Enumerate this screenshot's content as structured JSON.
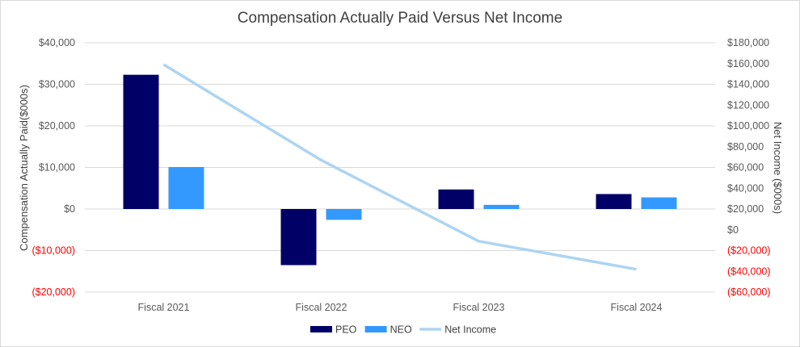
{
  "chart_data": {
    "type": "bar",
    "title": "Compensation Actually Paid Versus Net Income",
    "categories": [
      "Fiscal 2021",
      "Fiscal 2022",
      "Fiscal 2023",
      "Fiscal 2024"
    ],
    "series": [
      {
        "name": "PEO",
        "type": "bar",
        "axis": "left",
        "color": "#000066",
        "values": [
          32300,
          -13500,
          4700,
          3600
        ]
      },
      {
        "name": "NEO",
        "type": "bar",
        "axis": "left",
        "color": "#3399ff",
        "values": [
          10100,
          -2600,
          1000,
          2800
        ]
      },
      {
        "name": "Net Income",
        "type": "line",
        "axis": "right",
        "color": "#add4f2",
        "values": [
          159000,
          67000,
          -11000,
          -38000
        ]
      }
    ],
    "ylabel": "Compensation Actually Paid($000s)",
    "y2label": "Net Income ($000s)",
    "ylim": [
      -20000,
      40000
    ],
    "y2lim": [
      -60000,
      180000
    ],
    "yticks": [
      {
        "value": 40000,
        "label": "$40,000"
      },
      {
        "value": 30000,
        "label": "$30,000"
      },
      {
        "value": 20000,
        "label": "$20,000"
      },
      {
        "value": 10000,
        "label": "$10,000"
      },
      {
        "value": 0,
        "label": "$0"
      },
      {
        "value": -10000,
        "label": "($10,000)"
      },
      {
        "value": -20000,
        "label": "($20,000)"
      }
    ],
    "y2ticks": [
      {
        "value": 180000,
        "label": "$180,000"
      },
      {
        "value": 160000,
        "label": "$160,000"
      },
      {
        "value": 140000,
        "label": "$140,000"
      },
      {
        "value": 120000,
        "label": "$120,000"
      },
      {
        "value": 100000,
        "label": "$100,000"
      },
      {
        "value": 80000,
        "label": "$80,000"
      },
      {
        "value": 60000,
        "label": "$60,000"
      },
      {
        "value": 40000,
        "label": "$40,000"
      },
      {
        "value": 20000,
        "label": "$20,000"
      },
      {
        "value": 0,
        "label": "$0"
      },
      {
        "value": -20000,
        "label": "($20,000)"
      },
      {
        "value": -40000,
        "label": "($40,000)"
      },
      {
        "value": -60000,
        "label": "($60,000)"
      }
    ],
    "grid": true,
    "legend": "bottom",
    "negative_label_color": "#ff0000",
    "positive_label_color": "#595959"
  }
}
